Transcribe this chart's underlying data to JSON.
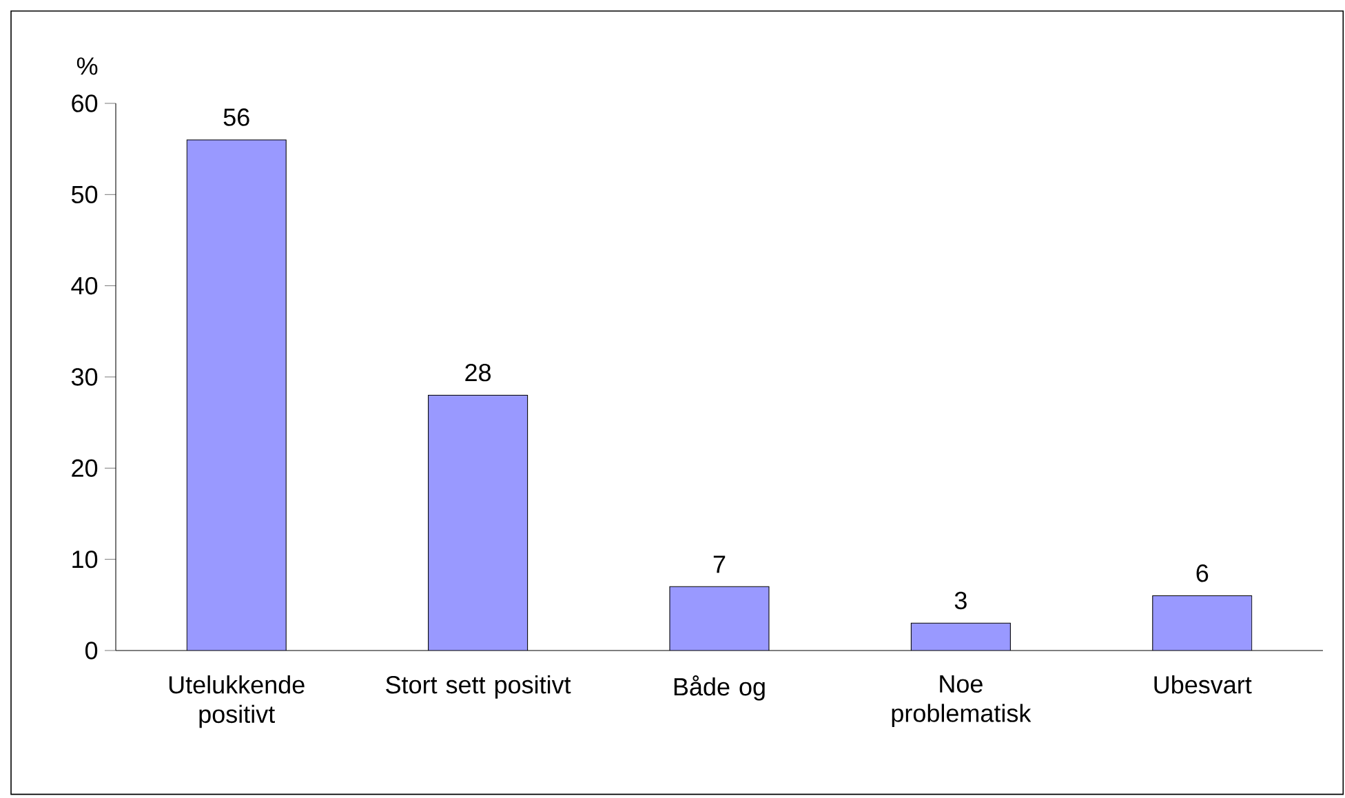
{
  "chart_data": {
    "type": "bar",
    "ylabel": "%",
    "categories": [
      "Utelukkende positivt",
      "Stort sett positivt",
      "Både og",
      "Noe problematisk",
      "Ubesvart"
    ],
    "values": [
      56,
      28,
      7,
      3,
      6
    ],
    "color": "#9999ff",
    "ylim": [
      0,
      60
    ],
    "yticks": [
      0,
      10,
      20,
      30,
      40,
      50,
      60
    ],
    "data_labels": true
  }
}
